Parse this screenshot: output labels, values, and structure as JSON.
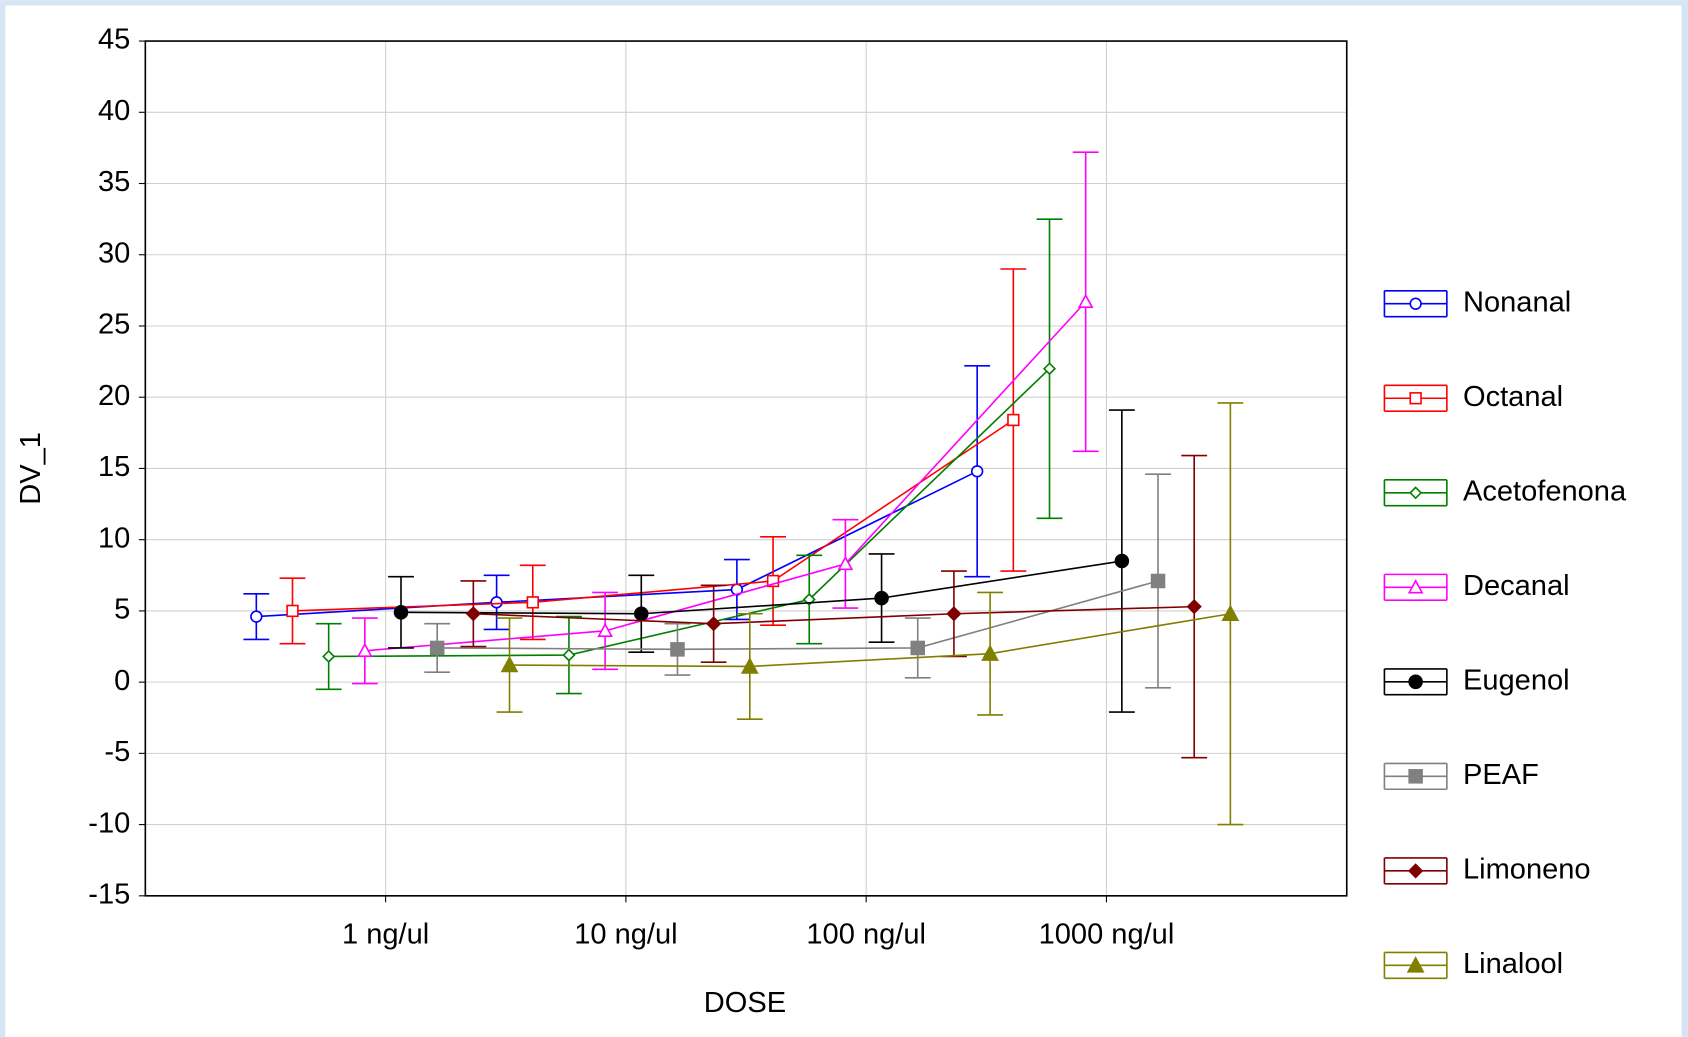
{
  "chart_data": {
    "type": "errorbar-line",
    "xlabel": "DOSE",
    "ylabel": "DV_1",
    "categories": [
      "1 ng/ul",
      "10 ng/ul",
      "100 ng/ul",
      "1000 ng/ul"
    ],
    "ylim": [
      -15,
      45
    ],
    "yticks": [
      -15,
      -10,
      -5,
      0,
      5,
      10,
      15,
      20,
      25,
      30,
      35,
      40,
      45
    ],
    "grid": true,
    "legend": "right",
    "series": [
      {
        "name": "Nonanal",
        "color": "#0000ff",
        "marker": "circle-open",
        "values": [
          4.6,
          5.6,
          6.5,
          14.8
        ],
        "errors": [
          1.6,
          1.9,
          2.1,
          7.4
        ]
      },
      {
        "name": "Octanal",
        "color": "#ff0000",
        "marker": "square-open",
        "values": [
          5.0,
          5.6,
          7.1,
          18.4
        ],
        "errors": [
          2.3,
          2.6,
          3.1,
          10.6
        ]
      },
      {
        "name": "Acetofenona",
        "color": "#008000",
        "marker": "diamond-open",
        "values": [
          1.8,
          1.9,
          5.8,
          22.0
        ],
        "errors": [
          2.3,
          2.7,
          3.1,
          10.5
        ]
      },
      {
        "name": "Decanal",
        "color": "#ff00ff",
        "marker": "triangle-open",
        "values": [
          2.2,
          3.6,
          8.3,
          26.7
        ],
        "errors": [
          2.3,
          2.7,
          3.1,
          10.5
        ]
      },
      {
        "name": "Eugenol",
        "color": "#000000",
        "marker": "circle",
        "values": [
          4.9,
          4.8,
          5.9,
          8.5
        ],
        "errors": [
          2.5,
          2.7,
          3.1,
          10.6
        ]
      },
      {
        "name": "PEAF",
        "color": "#808080",
        "marker": "square",
        "values": [
          2.4,
          2.3,
          2.4,
          7.1
        ],
        "errors": [
          1.7,
          1.8,
          2.1,
          7.5
        ]
      },
      {
        "name": "Limoneno",
        "color": "#800000",
        "marker": "diamond",
        "values": [
          4.8,
          4.1,
          4.8,
          5.3
        ],
        "errors": [
          2.3,
          2.7,
          3.0,
          10.6
        ]
      },
      {
        "name": "Linalool",
        "color": "#808000",
        "marker": "triangle",
        "values": [
          1.2,
          1.1,
          2.0,
          4.8
        ],
        "errors": [
          3.3,
          3.7,
          4.3,
          14.8
        ]
      }
    ]
  }
}
